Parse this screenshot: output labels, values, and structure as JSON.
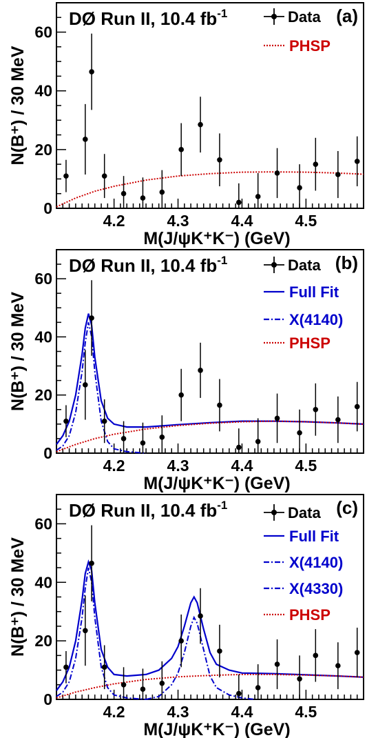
{
  "chart_data": [
    {
      "panel_label": "(a)",
      "type": "scatter",
      "title": "DØ Run II, 10.4 fb",
      "title_sup": "-1",
      "xlabel": "M(J/ψK⁺K⁻) (GeV)",
      "ylabel": "N(B⁺) / 30 MeV",
      "xlim": [
        4.11,
        4.59
      ],
      "ylim": [
        0,
        70
      ],
      "xticks": [
        "4.2",
        "4.3",
        "4.4",
        "4.5"
      ],
      "yticks": [
        "0",
        "20",
        "40",
        "60"
      ],
      "data": {
        "name": "Data",
        "x": [
          4.125,
          4.155,
          4.165,
          4.185,
          4.215,
          4.245,
          4.275,
          4.305,
          4.335,
          4.365,
          4.395,
          4.425,
          4.455,
          4.49,
          4.515,
          4.55,
          4.58
        ],
        "y": [
          11,
          23.5,
          46.5,
          11,
          5,
          3.5,
          5.5,
          20,
          28.5,
          16.5,
          2,
          4,
          12,
          7,
          15,
          11.5,
          16
        ],
        "err": [
          5.5,
          12,
          13,
          7.5,
          6,
          7,
          7.5,
          9,
          9.5,
          9,
          6.5,
          8,
          8.5,
          8,
          9,
          8,
          8.5
        ]
      },
      "curves": [
        {
          "name": "PHSP",
          "color": "#cc0000",
          "style": "dotted",
          "x": [
            4.11,
            4.14,
            4.17,
            4.2,
            4.25,
            4.3,
            4.35,
            4.4,
            4.45,
            4.5,
            4.55,
            4.59
          ],
          "y": [
            0.5,
            3.5,
            5.8,
            7.5,
            9.6,
            11,
            11.8,
            12.3,
            12.4,
            12.3,
            12,
            11.6
          ]
        }
      ],
      "legend": [
        "Data",
        "PHSP"
      ]
    },
    {
      "panel_label": "(b)",
      "type": "scatter",
      "title": "DØ Run II, 10.4 fb",
      "title_sup": "-1",
      "xlabel": "M(J/ψK⁺K⁻) (GeV)",
      "ylabel": "N(B⁺) / 30 MeV",
      "xlim": [
        4.11,
        4.59
      ],
      "ylim": [
        0,
        70
      ],
      "xticks": [
        "4.2",
        "4.3",
        "4.4",
        "4.5"
      ],
      "yticks": [
        "0",
        "20",
        "40",
        "60"
      ],
      "data": {
        "name": "Data",
        "x": [
          4.125,
          4.155,
          4.165,
          4.185,
          4.215,
          4.245,
          4.275,
          4.305,
          4.335,
          4.365,
          4.395,
          4.425,
          4.455,
          4.49,
          4.515,
          4.55,
          4.58
        ],
        "y": [
          11,
          23.5,
          46.5,
          11,
          5,
          3.5,
          5.5,
          20,
          28.5,
          16.5,
          2,
          4,
          12,
          7,
          15,
          11.5,
          16
        ],
        "err": [
          5.5,
          12,
          13,
          7.5,
          6,
          7,
          7.5,
          9,
          9.5,
          9,
          6.5,
          8,
          8.5,
          8,
          9,
          8,
          8.5
        ]
      },
      "curves": [
        {
          "name": "Full Fit",
          "color": "#0000cc",
          "style": "solid",
          "x": [
            4.11,
            4.12,
            4.13,
            4.14,
            4.15,
            4.155,
            4.16,
            4.165,
            4.17,
            4.18,
            4.19,
            4.2,
            4.22,
            4.25,
            4.3,
            4.35,
            4.4,
            4.45,
            4.5,
            4.55,
            4.59
          ],
          "y": [
            3,
            6,
            11,
            20,
            34,
            43,
            48,
            44,
            33,
            18,
            12,
            10,
            9,
            9,
            9.8,
            10.5,
            11,
            11,
            10.8,
            10.4,
            10
          ]
        },
        {
          "name": "X(4140)",
          "color": "#0000cc",
          "style": "dashdot",
          "x": [
            4.11,
            4.12,
            4.13,
            4.14,
            4.15,
            4.155,
            4.16,
            4.165,
            4.17,
            4.18,
            4.19,
            4.2,
            4.22,
            4.25
          ],
          "y": [
            1,
            2.5,
            6,
            14,
            28,
            38,
            45,
            40,
            28,
            11,
            4,
            1.5,
            0.5,
            0
          ]
        },
        {
          "name": "PHSP",
          "color": "#cc0000",
          "style": "dotted",
          "x": [
            4.11,
            4.14,
            4.17,
            4.2,
            4.25,
            4.3,
            4.35,
            4.4,
            4.45,
            4.5,
            4.55,
            4.59
          ],
          "y": [
            0.5,
            3,
            5,
            6.5,
            8.3,
            9.5,
            10.3,
            10.8,
            11,
            10.8,
            10.4,
            10
          ]
        }
      ],
      "legend": [
        "Data",
        "Full Fit",
        "X(4140)",
        "PHSP"
      ]
    },
    {
      "panel_label": "(c)",
      "type": "scatter",
      "title": "DØ Run II, 10.4 fb",
      "title_sup": "-1",
      "xlabel": "M(J/ψK⁺K⁻) (GeV)",
      "ylabel": "N(B⁺) / 30 MeV",
      "xlim": [
        4.11,
        4.59
      ],
      "ylim": [
        0,
        70
      ],
      "xticks": [
        "4.2",
        "4.3",
        "4.4",
        "4.5"
      ],
      "yticks": [
        "0",
        "20",
        "40",
        "60"
      ],
      "data": {
        "name": "Data",
        "x": [
          4.125,
          4.155,
          4.165,
          4.185,
          4.215,
          4.245,
          4.275,
          4.305,
          4.335,
          4.365,
          4.395,
          4.425,
          4.455,
          4.49,
          4.515,
          4.55,
          4.58
        ],
        "y": [
          11,
          23.5,
          46.5,
          11,
          5,
          3.5,
          5.5,
          20,
          28.5,
          16.5,
          2,
          4,
          12,
          7,
          15,
          11.5,
          16
        ],
        "err": [
          5.5,
          12,
          13,
          7.5,
          6,
          7,
          7.5,
          9,
          9.5,
          9,
          6.5,
          8,
          8.5,
          8,
          9,
          8,
          8.5
        ]
      },
      "curves": [
        {
          "name": "Full Fit",
          "color": "#0000cc",
          "style": "solid",
          "x": [
            4.11,
            4.12,
            4.13,
            4.14,
            4.15,
            4.155,
            4.16,
            4.165,
            4.17,
            4.18,
            4.19,
            4.2,
            4.22,
            4.25,
            4.27,
            4.29,
            4.3,
            4.31,
            4.32,
            4.325,
            4.33,
            4.34,
            4.35,
            4.36,
            4.38,
            4.4,
            4.45,
            4.5,
            4.55,
            4.59
          ],
          "y": [
            3,
            6,
            11,
            20,
            34,
            43,
            47,
            44,
            33,
            17,
            11,
            8.5,
            8,
            8.5,
            10,
            14,
            18,
            25,
            33,
            35,
            33,
            24,
            16,
            12,
            10,
            9,
            8.8,
            8.4,
            8,
            7.6
          ]
        },
        {
          "name": "X(4140)",
          "color": "#0000cc",
          "style": "dashdot",
          "x": [
            4.11,
            4.12,
            4.13,
            4.14,
            4.15,
            4.155,
            4.16,
            4.165,
            4.17,
            4.18,
            4.19,
            4.2,
            4.22,
            4.25
          ],
          "y": [
            1,
            2.5,
            6,
            14,
            28,
            38,
            45,
            40,
            28,
            11,
            4,
            1.5,
            0.5,
            0
          ]
        },
        {
          "name": "X(4330)",
          "color": "#0000cc",
          "style": "dashdot",
          "x": [
            4.25,
            4.27,
            4.29,
            4.3,
            4.31,
            4.32,
            4.325,
            4.33,
            4.34,
            4.35,
            4.36,
            4.38,
            4.4,
            4.42
          ],
          "y": [
            0,
            1,
            5,
            9,
            16,
            25,
            28,
            26,
            17,
            8,
            4,
            1.5,
            0.5,
            0
          ]
        },
        {
          "name": "PHSP",
          "color": "#cc0000",
          "style": "dotted",
          "x": [
            4.11,
            4.14,
            4.17,
            4.2,
            4.25,
            4.3,
            4.35,
            4.4,
            4.45,
            4.5,
            4.55,
            4.59
          ],
          "y": [
            0.5,
            2.5,
            4,
            5.3,
            6.8,
            7.7,
            8.2,
            8.5,
            8.5,
            8.3,
            8,
            7.6
          ]
        }
      ],
      "legend": [
        "Data",
        "Full Fit",
        "X(4140)",
        "X(4330)",
        "PHSP"
      ]
    }
  ]
}
